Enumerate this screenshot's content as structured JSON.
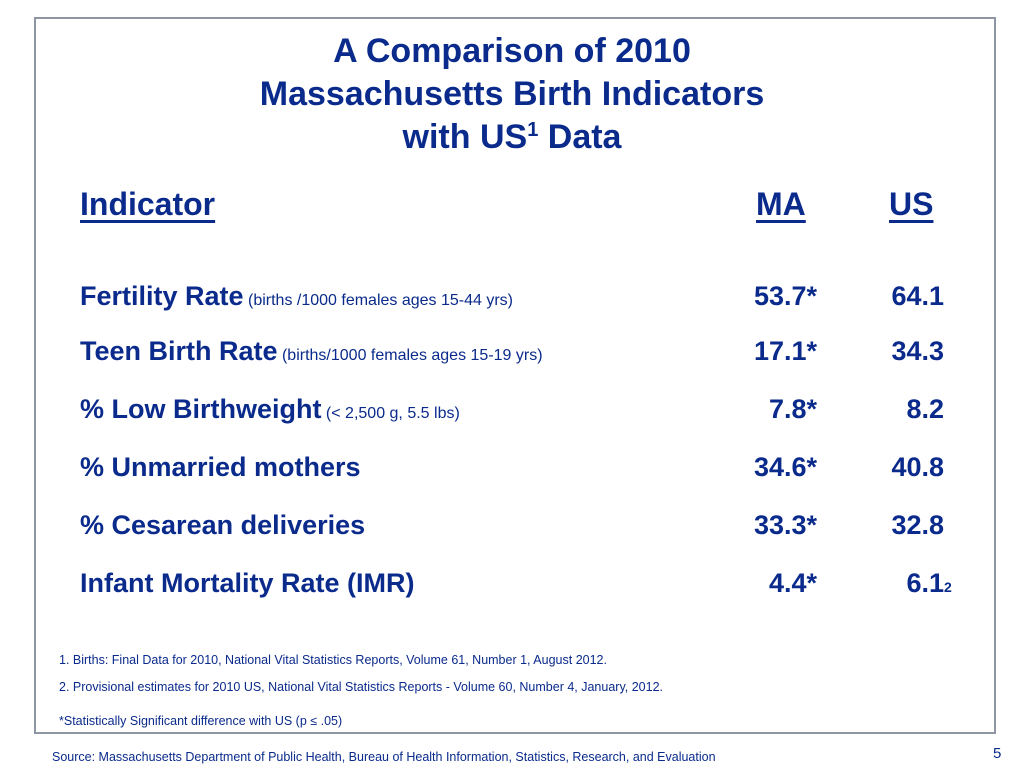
{
  "title": {
    "line1": "A Comparison of 2010",
    "line2": "Massachusetts Birth Indicators",
    "line3_pre": "with US",
    "line3_sup": "1",
    "line3_post": " Data"
  },
  "headers": {
    "indicator": "Indicator",
    "ma": "MA",
    "us": "US"
  },
  "rows": [
    {
      "label": "Fertility Rate",
      "note": " (births /1000 females ages 15-44 yrs)",
      "ma": "53.7*",
      "us": "64.1",
      "us_note": ""
    },
    {
      "label": "Teen Birth Rate",
      "note": " (births/1000 females ages 15-19 yrs)",
      "ma": "17.1*",
      "us": "34.3",
      "us_note": ""
    },
    {
      "label": "% Low Birthweight",
      "note": " (< 2,500 g, 5.5 lbs)",
      "ma": "7.8*",
      "us": "8.2",
      "us_note": ""
    },
    {
      "label": "% Unmarried mothers",
      "note": "",
      "ma": "34.6*",
      "us": "40.8",
      "us_note": ""
    },
    {
      "label": "% Cesarean deliveries",
      "note": "",
      "ma": "33.3*",
      "us": "32.8",
      "us_note": ""
    },
    {
      "label": "Infant Mortality Rate (IMR)",
      "note": "",
      "ma": "4.4*",
      "us": "6.1",
      "us_note": "2"
    }
  ],
  "footnotes": {
    "fn1": "1. Births: Final Data for 2010, National Vital Statistics Reports, Volume 61, Number 1, August 2012.",
    "fn2": "2. Provisional estimates for 2010 US, National Vital Statistics Reports  - Volume 60, Number 4, January, 2012.",
    "significance": "*Statistically Significant difference with US  (p ≤ .05)"
  },
  "source": "Source:  Massachusetts Department of Public Health, Bureau of Health Information, Statistics, Research, and Evaluation",
  "page_number": "5"
}
